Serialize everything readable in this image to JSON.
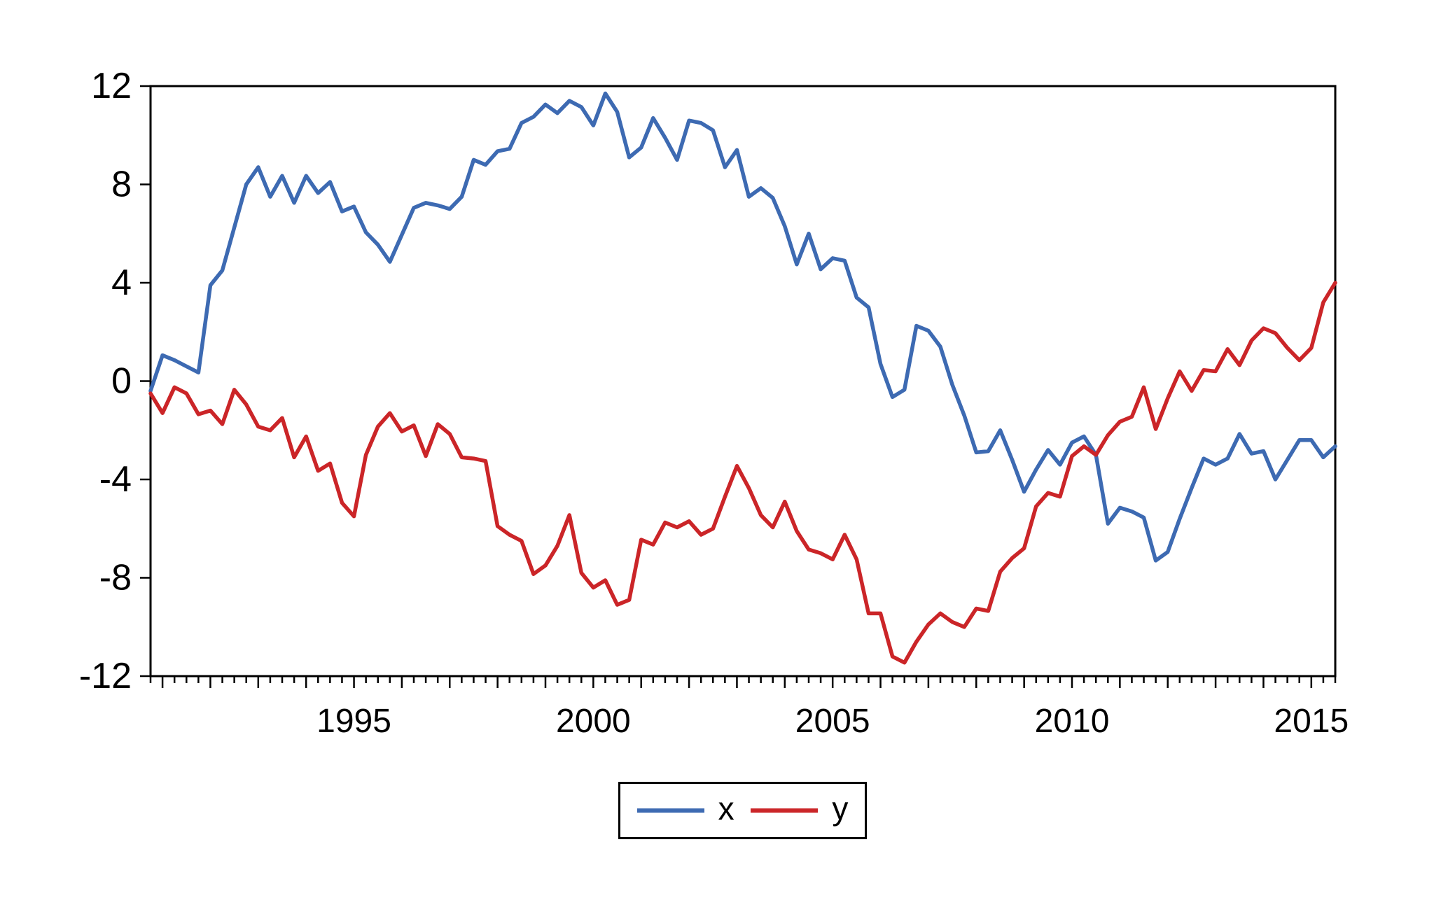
{
  "chart_data": {
    "type": "line",
    "title": "",
    "grid": false,
    "legend_position": "bottom-center",
    "axis_color": "#000000",
    "ylim": [
      -12,
      12
    ],
    "y_ticks": [
      12,
      8,
      4,
      0,
      -4,
      -8,
      -12
    ],
    "x_axis": {
      "start_period": "1990Q4",
      "end_period": "2015Q3",
      "frequency": "quarterly",
      "tick_labels": [
        "1995",
        "2000",
        "2005",
        "2010",
        "2015"
      ],
      "label_indices": [
        17,
        37,
        57,
        77,
        97
      ],
      "year_tick_phase": 1
    },
    "legend": [
      "x",
      "y"
    ],
    "series": [
      {
        "name": "x",
        "color": "#3d6ab2",
        "values": [
          -0.4,
          1.05,
          0.85,
          0.6,
          0.35,
          3.9,
          4.5,
          6.25,
          8.0,
          8.7,
          7.5,
          8.35,
          7.25,
          8.35,
          7.65,
          8.1,
          6.9,
          7.1,
          6.05,
          5.55,
          4.85,
          5.95,
          7.05,
          7.25,
          7.15,
          7.0,
          7.5,
          9.0,
          8.8,
          9.35,
          9.45,
          10.5,
          10.75,
          11.25,
          10.9,
          11.4,
          11.15,
          10.4,
          11.7,
          10.95,
          9.1,
          9.5,
          10.7,
          9.9,
          9.0,
          10.6,
          10.5,
          10.2,
          8.7,
          9.4,
          7.5,
          7.85,
          7.45,
          6.3,
          4.75,
          6.0,
          4.55,
          5.0,
          4.9,
          3.4,
          3.0,
          0.7,
          -0.65,
          -0.35,
          2.25,
          2.05,
          1.4,
          -0.15,
          -1.4,
          -2.9,
          -2.85,
          -2.0,
          -3.2,
          -4.5,
          -3.6,
          -2.8,
          -3.4,
          -2.5,
          -2.25,
          -3.0,
          -5.8,
          -5.15,
          -5.3,
          -5.55,
          -7.3,
          -6.95,
          -5.6,
          -4.35,
          -3.15,
          -3.4,
          -3.15,
          -2.15,
          -2.95,
          -2.85,
          -4.0,
          -3.2,
          -2.4,
          -2.4,
          -3.1,
          -2.65
        ]
      },
      {
        "name": "y",
        "color": "#cb2528",
        "values": [
          -0.5,
          -1.3,
          -0.25,
          -0.5,
          -1.35,
          -1.2,
          -1.75,
          -0.35,
          -0.95,
          -1.85,
          -2.0,
          -1.5,
          -3.1,
          -2.25,
          -3.65,
          -3.35,
          -4.95,
          -5.5,
          -3.0,
          -1.85,
          -1.3,
          -2.05,
          -1.8,
          -3.05,
          -1.75,
          -2.15,
          -3.1,
          -3.15,
          -3.25,
          -5.9,
          -6.25,
          -6.5,
          -7.85,
          -7.5,
          -6.7,
          -5.45,
          -7.8,
          -8.4,
          -8.1,
          -9.1,
          -8.9,
          -6.45,
          -6.65,
          -5.75,
          -5.95,
          -5.7,
          -6.25,
          -6.0,
          -4.7,
          -3.45,
          -4.35,
          -5.45,
          -5.95,
          -4.9,
          -6.1,
          -6.85,
          -7.0,
          -7.25,
          -6.25,
          -7.25,
          -9.45,
          -9.45,
          -11.2,
          -11.45,
          -10.6,
          -9.9,
          -9.45,
          -9.8,
          -10.0,
          -9.25,
          -9.35,
          -7.75,
          -7.2,
          -6.8,
          -5.1,
          -4.55,
          -4.7,
          -3.05,
          -2.65,
          -3.0,
          -2.2,
          -1.65,
          -1.45,
          -0.25,
          -1.95,
          -0.7,
          0.4,
          -0.4,
          0.45,
          0.4,
          1.3,
          0.65,
          1.65,
          2.15,
          1.95,
          1.35,
          0.85,
          1.35,
          3.2,
          4.0
        ]
      }
    ]
  }
}
